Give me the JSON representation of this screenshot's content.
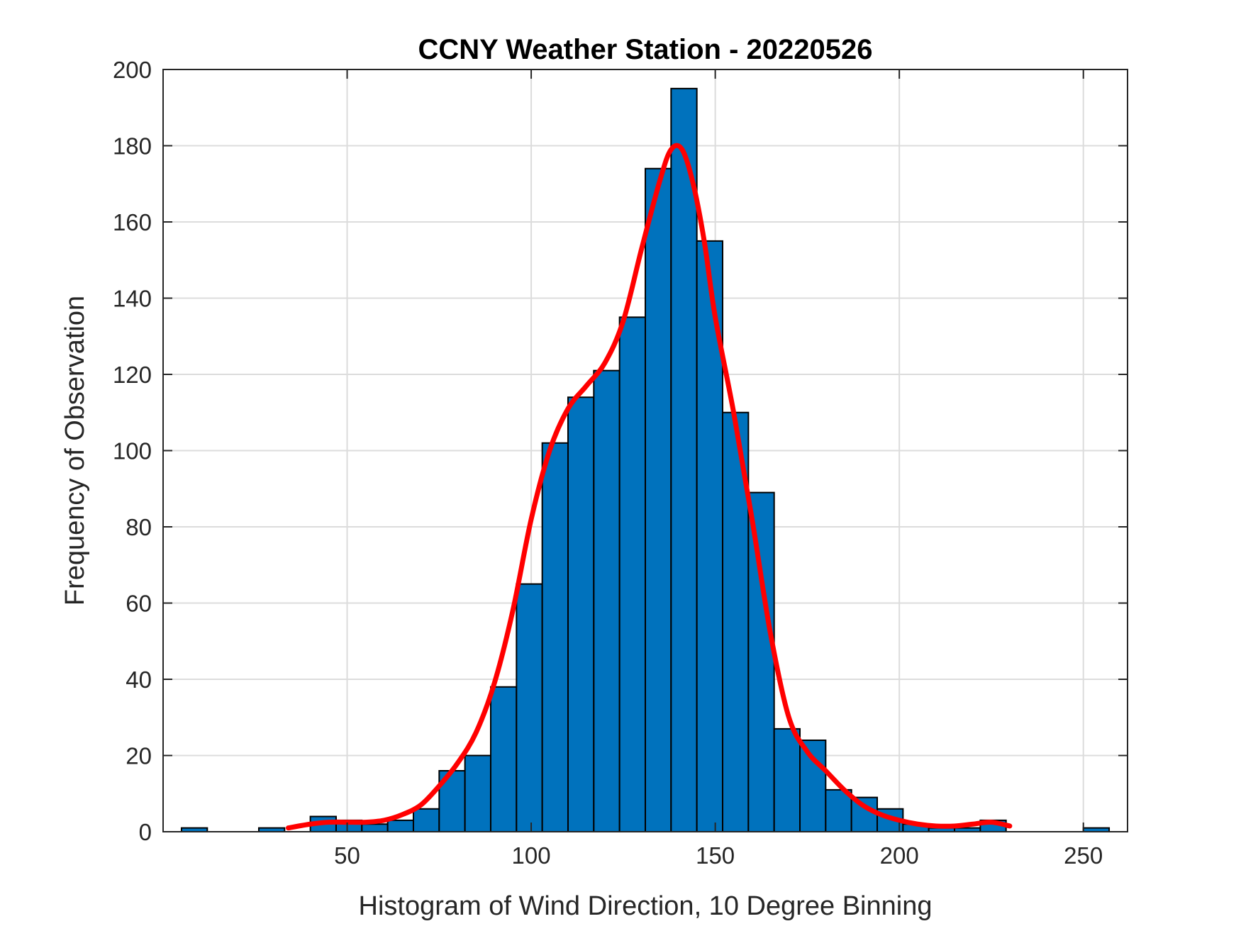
{
  "chart_data": {
    "type": "bar",
    "title": "CCNY Weather Station - 20220526",
    "xlabel": "Histogram of Wind Direction, 10 Degree Binning",
    "ylabel": "Frequency of Observation",
    "xlim": [
      0,
      262
    ],
    "ylim": [
      0,
      200
    ],
    "xticks": [
      50,
      100,
      150,
      200,
      250
    ],
    "yticks": [
      0,
      20,
      40,
      60,
      80,
      100,
      120,
      140,
      160,
      180,
      200
    ],
    "grid": true,
    "bin_width": 7,
    "bar_color": "#0072BD",
    "bar_edge_color": "#000000",
    "curve_color": "#FF0000",
    "bins": [
      {
        "x": 5,
        "value": 1
      },
      {
        "x": 26,
        "value": 1
      },
      {
        "x": 40,
        "value": 4
      },
      {
        "x": 47,
        "value": 3
      },
      {
        "x": 54,
        "value": 2
      },
      {
        "x": 61,
        "value": 3
      },
      {
        "x": 68,
        "value": 6
      },
      {
        "x": 75,
        "value": 16
      },
      {
        "x": 82,
        "value": 20
      },
      {
        "x": 89,
        "value": 38
      },
      {
        "x": 96,
        "value": 65
      },
      {
        "x": 103,
        "value": 102
      },
      {
        "x": 110,
        "value": 114
      },
      {
        "x": 117,
        "value": 121
      },
      {
        "x": 124,
        "value": 135
      },
      {
        "x": 131,
        "value": 174
      },
      {
        "x": 138,
        "value": 195
      },
      {
        "x": 145,
        "value": 155
      },
      {
        "x": 152,
        "value": 110
      },
      {
        "x": 159,
        "value": 89
      },
      {
        "x": 166,
        "value": 27
      },
      {
        "x": 173,
        "value": 24
      },
      {
        "x": 180,
        "value": 11
      },
      {
        "x": 187,
        "value": 9
      },
      {
        "x": 194,
        "value": 6
      },
      {
        "x": 201,
        "value": 2
      },
      {
        "x": 208,
        "value": 1
      },
      {
        "x": 215,
        "value": 1
      },
      {
        "x": 222,
        "value": 3
      },
      {
        "x": 250,
        "value": 1
      }
    ],
    "fit_curve": [
      [
        34,
        1
      ],
      [
        40,
        2
      ],
      [
        45,
        2.5
      ],
      [
        50,
        2.5
      ],
      [
        55,
        2.5
      ],
      [
        60,
        3
      ],
      [
        65,
        4.5
      ],
      [
        70,
        7
      ],
      [
        75,
        12
      ],
      [
        80,
        18
      ],
      [
        85,
        26
      ],
      [
        90,
        39
      ],
      [
        95,
        58
      ],
      [
        100,
        82
      ],
      [
        105,
        100
      ],
      [
        110,
        111
      ],
      [
        115,
        117
      ],
      [
        120,
        123
      ],
      [
        125,
        134
      ],
      [
        130,
        153
      ],
      [
        135,
        171
      ],
      [
        138,
        179
      ],
      [
        141,
        179
      ],
      [
        144,
        170
      ],
      [
        147,
        155
      ],
      [
        150,
        135
      ],
      [
        155,
        110
      ],
      [
        160,
        82
      ],
      [
        165,
        52
      ],
      [
        170,
        30
      ],
      [
        175,
        21
      ],
      [
        180,
        16
      ],
      [
        185,
        11
      ],
      [
        190,
        7
      ],
      [
        195,
        4.5
      ],
      [
        200,
        3
      ],
      [
        205,
        2
      ],
      [
        210,
        1.5
      ],
      [
        215,
        1.5
      ],
      [
        220,
        2
      ],
      [
        225,
        2.5
      ],
      [
        230,
        1.5
      ]
    ]
  }
}
